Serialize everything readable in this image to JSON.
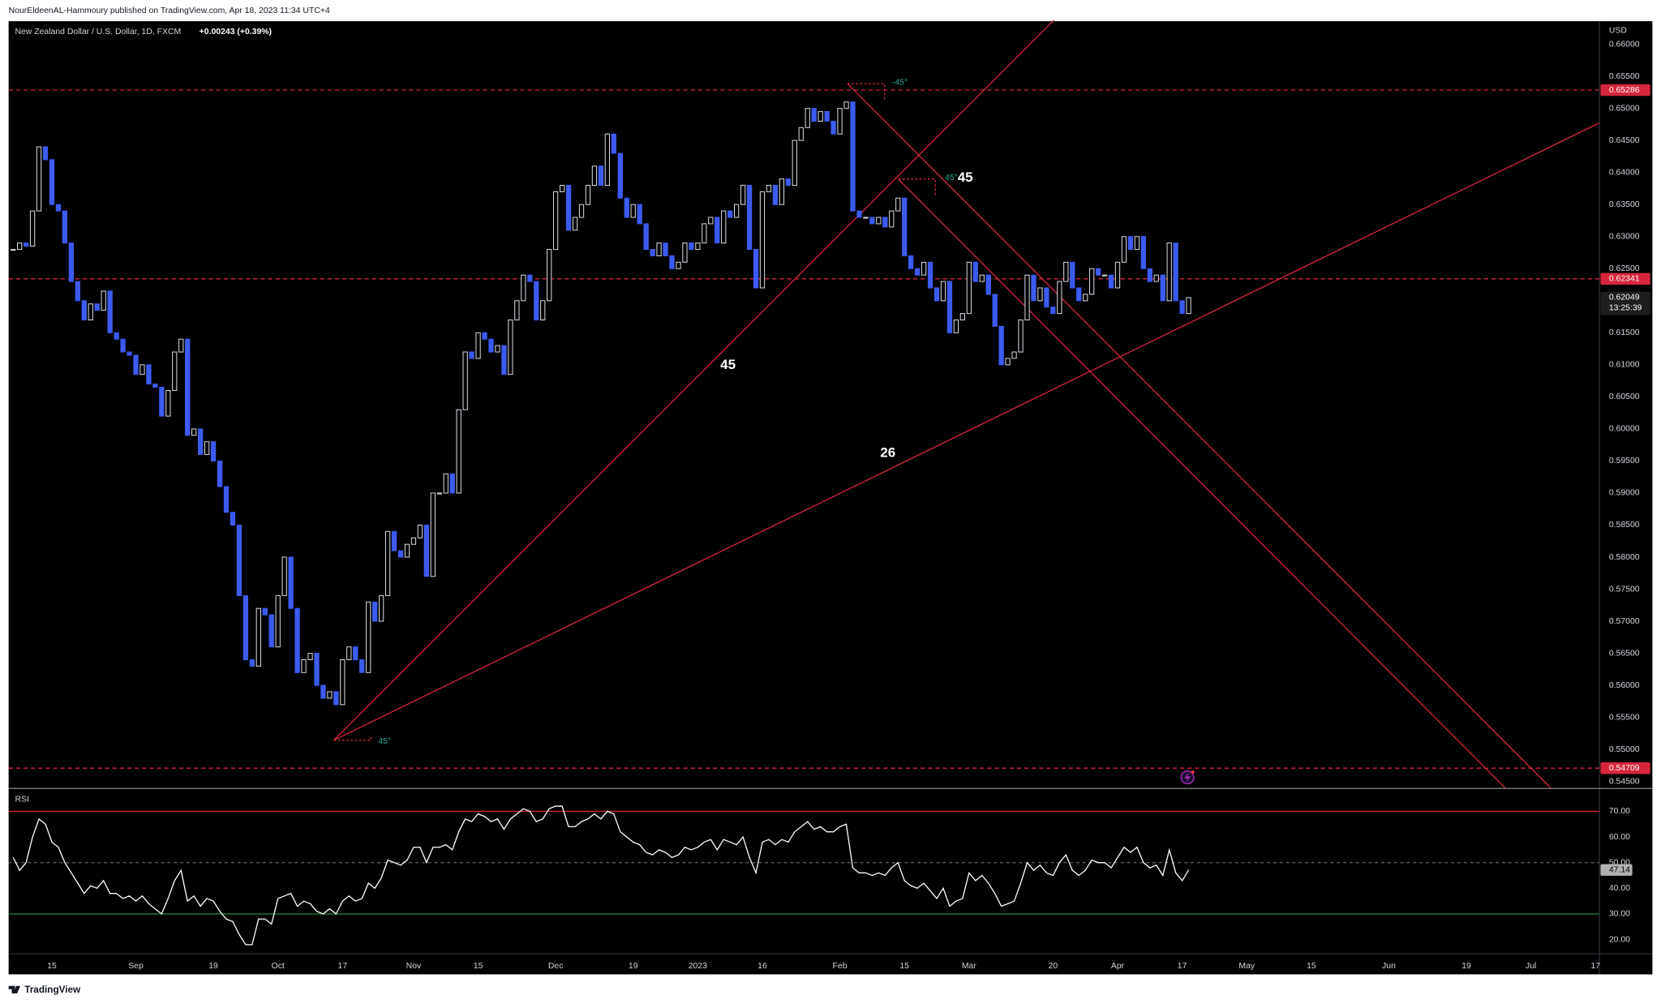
{
  "header": {
    "byline": "NourEldeenAL-Hammoury published on TradingView.com, Apr 18, 2023 11:34 UTC+4"
  },
  "footer": {
    "brand": "TradingView"
  },
  "chart_data": [
    {
      "type": "candlestick",
      "title": "New Zealand Dollar / U.S. Dollar, 1D, FXCM",
      "change": "+0.00243 (+0.39%)",
      "y_label": "USD",
      "countdown": "13:25:39",
      "colors": {
        "up": "#d1d4dc",
        "up_fill": "#000000",
        "down": "#3d5af1",
        "drawing": "#d6263d",
        "current": "#1e1e1e"
      },
      "xlim": [
        -0.7,
        245.6
      ],
      "xticks": [
        {
          "value": 6,
          "label": "15"
        },
        {
          "value": 19,
          "label": "Sep"
        },
        {
          "value": 31,
          "label": "19"
        },
        {
          "value": 41,
          "label": "Oct"
        },
        {
          "value": 51,
          "label": "17"
        },
        {
          "value": 62,
          "label": "Nov"
        },
        {
          "value": 72,
          "label": "15"
        },
        {
          "value": 84,
          "label": "Dec"
        },
        {
          "value": 96,
          "label": "19"
        },
        {
          "value": 106,
          "label": "2023"
        },
        {
          "value": 116,
          "label": "16"
        },
        {
          "value": 128,
          "label": "Feb"
        },
        {
          "value": 138,
          "label": "15"
        },
        {
          "value": 148,
          "label": "Mar"
        },
        {
          "value": 161,
          "label": "20"
        },
        {
          "value": 171,
          "label": "Apr"
        },
        {
          "value": 181,
          "label": "17"
        },
        {
          "value": 191,
          "label": "May"
        },
        {
          "value": 201,
          "label": "15"
        },
        {
          "value": 213,
          "label": "Jun"
        },
        {
          "value": 225,
          "label": "19"
        },
        {
          "value": 235,
          "label": "Jul"
        },
        {
          "value": 245,
          "label": "17"
        }
      ],
      "ylim": [
        0.544,
        0.6636
      ],
      "yticks": [
        {
          "value": 0.545,
          "label": "0.54500"
        },
        {
          "value": 0.55,
          "label": "0.55000"
        },
        {
          "value": 0.555,
          "label": "0.55500"
        },
        {
          "value": 0.56,
          "label": "0.56000"
        },
        {
          "value": 0.565,
          "label": "0.56500"
        },
        {
          "value": 0.57,
          "label": "0.57000"
        },
        {
          "value": 0.575,
          "label": "0.57500"
        },
        {
          "value": 0.58,
          "label": "0.58000"
        },
        {
          "value": 0.585,
          "label": "0.58500"
        },
        {
          "value": 0.59,
          "label": "0.59000"
        },
        {
          "value": 0.595,
          "label": "0.59500"
        },
        {
          "value": 0.6,
          "label": "0.60000"
        },
        {
          "value": 0.605,
          "label": "0.60500"
        },
        {
          "value": 0.61,
          "label": "0.61000"
        },
        {
          "value": 0.615,
          "label": "0.61500"
        },
        {
          "value": 0.62,
          "label": "0.62000"
        },
        {
          "value": 0.625,
          "label": "0.62500"
        },
        {
          "value": 0.63,
          "label": "0.63000"
        },
        {
          "value": 0.635,
          "label": "0.63500"
        },
        {
          "value": 0.64,
          "label": "0.64000"
        },
        {
          "value": 0.645,
          "label": "0.64500"
        },
        {
          "value": 0.65,
          "label": "0.65000"
        },
        {
          "value": 0.655,
          "label": "0.65500"
        },
        {
          "value": 0.66,
          "label": "0.66000"
        }
      ],
      "price_lines": [
        0.65286,
        0.62341,
        0.54709
      ],
      "annotations": [
        "45",
        "45",
        "26",
        "-45°",
        "45°",
        "45°"
      ],
      "values": [
        0.628,
        0.629,
        0.6285,
        0.634,
        0.644,
        0.642,
        0.635,
        0.634,
        0.629,
        0.623,
        0.62,
        0.617,
        0.6195,
        0.6185,
        0.6215,
        0.615,
        0.614,
        0.612,
        0.6115,
        0.6085,
        0.61,
        0.607,
        0.6065,
        0.602,
        0.606,
        0.612,
        0.614,
        0.599,
        0.6,
        0.596,
        0.598,
        0.595,
        0.591,
        0.587,
        0.585,
        0.574,
        0.564,
        0.563,
        0.572,
        0.571,
        0.566,
        0.574,
        0.58,
        0.572,
        0.562,
        0.564,
        0.565,
        0.56,
        0.558,
        0.559,
        0.557,
        0.564,
        0.566,
        0.564,
        0.562,
        0.573,
        0.57,
        0.574,
        0.584,
        0.581,
        0.58,
        0.582,
        0.583,
        0.585,
        0.577,
        0.59,
        0.59,
        0.593,
        0.59,
        0.603,
        0.612,
        0.611,
        0.615,
        0.614,
        0.612,
        0.613,
        0.6085,
        0.617,
        0.62,
        0.624,
        0.623,
        0.617,
        0.62,
        0.628,
        0.637,
        0.638,
        0.631,
        0.633,
        0.635,
        0.638,
        0.641,
        0.638,
        0.646,
        0.643,
        0.636,
        0.633,
        0.635,
        0.632,
        0.628,
        0.627,
        0.629,
        0.627,
        0.625,
        0.626,
        0.629,
        0.628,
        0.629,
        0.632,
        0.633,
        0.629,
        0.634,
        0.633,
        0.635,
        0.638,
        0.628,
        0.622,
        0.637,
        0.638,
        0.635,
        0.639,
        0.638,
        0.645,
        0.647,
        0.65,
        0.648,
        0.6495,
        0.648,
        0.646,
        0.65,
        0.651,
        0.634,
        0.633,
        0.633,
        0.632,
        0.633,
        0.6315,
        0.634,
        0.636,
        0.627,
        0.625,
        0.624,
        0.626,
        0.622,
        0.62,
        0.623,
        0.615,
        0.617,
        0.618,
        0.626,
        0.623,
        0.624,
        0.621,
        0.616,
        0.61,
        0.611,
        0.612,
        0.617,
        0.624,
        0.62,
        0.622,
        0.619,
        0.618,
        0.623,
        0.626,
        0.622,
        0.62,
        0.621,
        0.625,
        0.624,
        0.624,
        0.622,
        0.626,
        0.63,
        0.628,
        0.63,
        0.625,
        0.623,
        0.624,
        0.62,
        0.629,
        0.62,
        0.618,
        0.62049
      ]
    },
    {
      "type": "line",
      "title": "RSI",
      "color": "#ffffff",
      "ylim": [
        14.7,
        78.7
      ],
      "yticks": [
        {
          "value": 20,
          "label": "20.00"
        },
        {
          "value": 30,
          "label": "30.00"
        },
        {
          "value": 40,
          "label": "40.00"
        },
        {
          "value": 50,
          "label": "50.00"
        },
        {
          "value": 60,
          "label": "60.00"
        },
        {
          "value": 70,
          "label": "70.00"
        }
      ],
      "levels": [
        {
          "value": 70,
          "color": "#c62828",
          "dashed": false
        },
        {
          "value": 50,
          "color": "#5d5d5d",
          "dashed": true
        },
        {
          "value": 30,
          "color": "#2e7d32",
          "dashed": false
        }
      ],
      "last_label_color": "#b0b0b0",
      "values": [
        52,
        47,
        50,
        60,
        67,
        65,
        58,
        56,
        50,
        46,
        42,
        38,
        41,
        40,
        43,
        38,
        38,
        36,
        37,
        35,
        37,
        34,
        32,
        30,
        36,
        43,
        47,
        35,
        37,
        33,
        36,
        35,
        31,
        28,
        27,
        22,
        18,
        18,
        28,
        28,
        26,
        36,
        37,
        38,
        33,
        35,
        34,
        31,
        30,
        32,
        30,
        35,
        37,
        35,
        36,
        42,
        40,
        44,
        51,
        50,
        49,
        51,
        56,
        56,
        50,
        56,
        56,
        57,
        55,
        62,
        67,
        66,
        69,
        68,
        66,
        67,
        63,
        67,
        69,
        71,
        70,
        66,
        67,
        71,
        72,
        72,
        64,
        64,
        66,
        67,
        69,
        67,
        70,
        69,
        62,
        60,
        58,
        57,
        54,
        53,
        55,
        54,
        52,
        53,
        56,
        55,
        56,
        58,
        59,
        55,
        59,
        58,
        57,
        60,
        52,
        46,
        58,
        59,
        57,
        59,
        58,
        62,
        64,
        66,
        63,
        64,
        62,
        62,
        64,
        65,
        48,
        46,
        46,
        45,
        46,
        45,
        48,
        50,
        43,
        41,
        40,
        42,
        39,
        36,
        40,
        33,
        35,
        36,
        46,
        43,
        45,
        42,
        38,
        33,
        34,
        35,
        42,
        50,
        47,
        49,
        46,
        45,
        50,
        53,
        47,
        45,
        47,
        51,
        50,
        50,
        48,
        52,
        56,
        54,
        56,
        50,
        48,
        49,
        45,
        55,
        46,
        43,
        47.14
      ]
    }
  ]
}
